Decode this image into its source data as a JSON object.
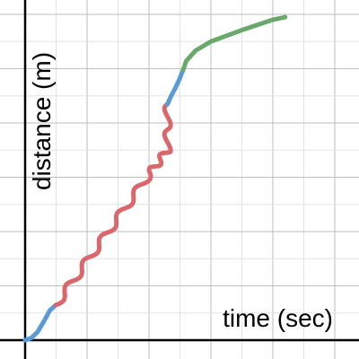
{
  "chart_data": {
    "type": "line",
    "xlabel": "time (sec)",
    "ylabel": "distance (m)",
    "xlim": [
      -0.4,
      5.4
    ],
    "ylim": [
      -0.3,
      6.3
    ],
    "grid": true,
    "series": [
      {
        "color": "#5b9bd5",
        "points": [
          [
            0.0,
            0.0
          ],
          [
            0.1,
            0.04
          ],
          [
            0.2,
            0.15
          ],
          [
            0.3,
            0.34
          ],
          [
            0.4,
            0.55
          ],
          [
            0.5,
            0.65
          ]
        ]
      },
      {
        "color": "#d9676b",
        "wavy": true,
        "points": [
          [
            0.5,
            0.65
          ],
          [
            1.0,
            1.45
          ],
          [
            1.5,
            2.25
          ],
          [
            2.0,
            3.05
          ],
          [
            2.3,
            3.5
          ],
          [
            2.3,
            4.35
          ]
        ]
      },
      {
        "color": "#5b9bd5",
        "points": [
          [
            2.3,
            4.35
          ],
          [
            2.35,
            4.48
          ],
          [
            2.42,
            4.63
          ],
          [
            2.49,
            4.8
          ],
          [
            2.53,
            4.92
          ],
          [
            2.55,
            4.97
          ]
        ]
      },
      {
        "color": "#6aa86c",
        "points": [
          [
            2.55,
            4.97
          ],
          [
            2.6,
            5.14
          ],
          [
            2.75,
            5.33
          ],
          [
            3.0,
            5.5
          ],
          [
            3.5,
            5.71
          ],
          [
            4.0,
            5.9
          ],
          [
            4.2,
            5.95
          ]
        ]
      }
    ]
  }
}
